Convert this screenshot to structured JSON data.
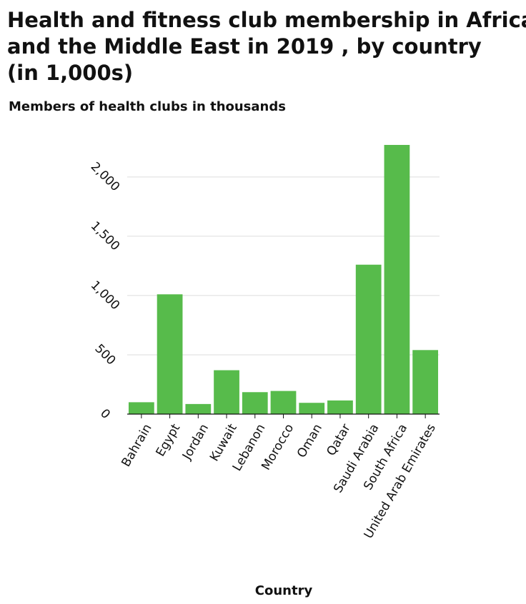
{
  "chart_data": {
    "type": "bar",
    "title": [
      "Health and fitness club membership in Africa",
      "and the Middle East in 2019 , by country",
      "(in 1,000s)"
    ],
    "y_label": "Members of health clubs in thousands",
    "x_label": "Country",
    "categories": [
      "Bahrain",
      "Egypt",
      "Jordan",
      "Kuwait",
      "Lebanon",
      "Morocco",
      "Oman",
      "Qatar",
      "Saudi Arabia",
      "South Africa",
      "United Arab Emirates"
    ],
    "values": [
      100,
      1010,
      85,
      370,
      185,
      195,
      95,
      115,
      1260,
      2270,
      540
    ],
    "color": "#57bb4b",
    "ylim": [
      0,
      2300
    ],
    "yticks": [
      0,
      500,
      {
        "value": 1000,
        "label": "1,000"
      },
      {
        "value": 1500,
        "label": "1,500"
      },
      {
        "value": 2000,
        "label": "2,000"
      }
    ],
    "grid": true
  }
}
